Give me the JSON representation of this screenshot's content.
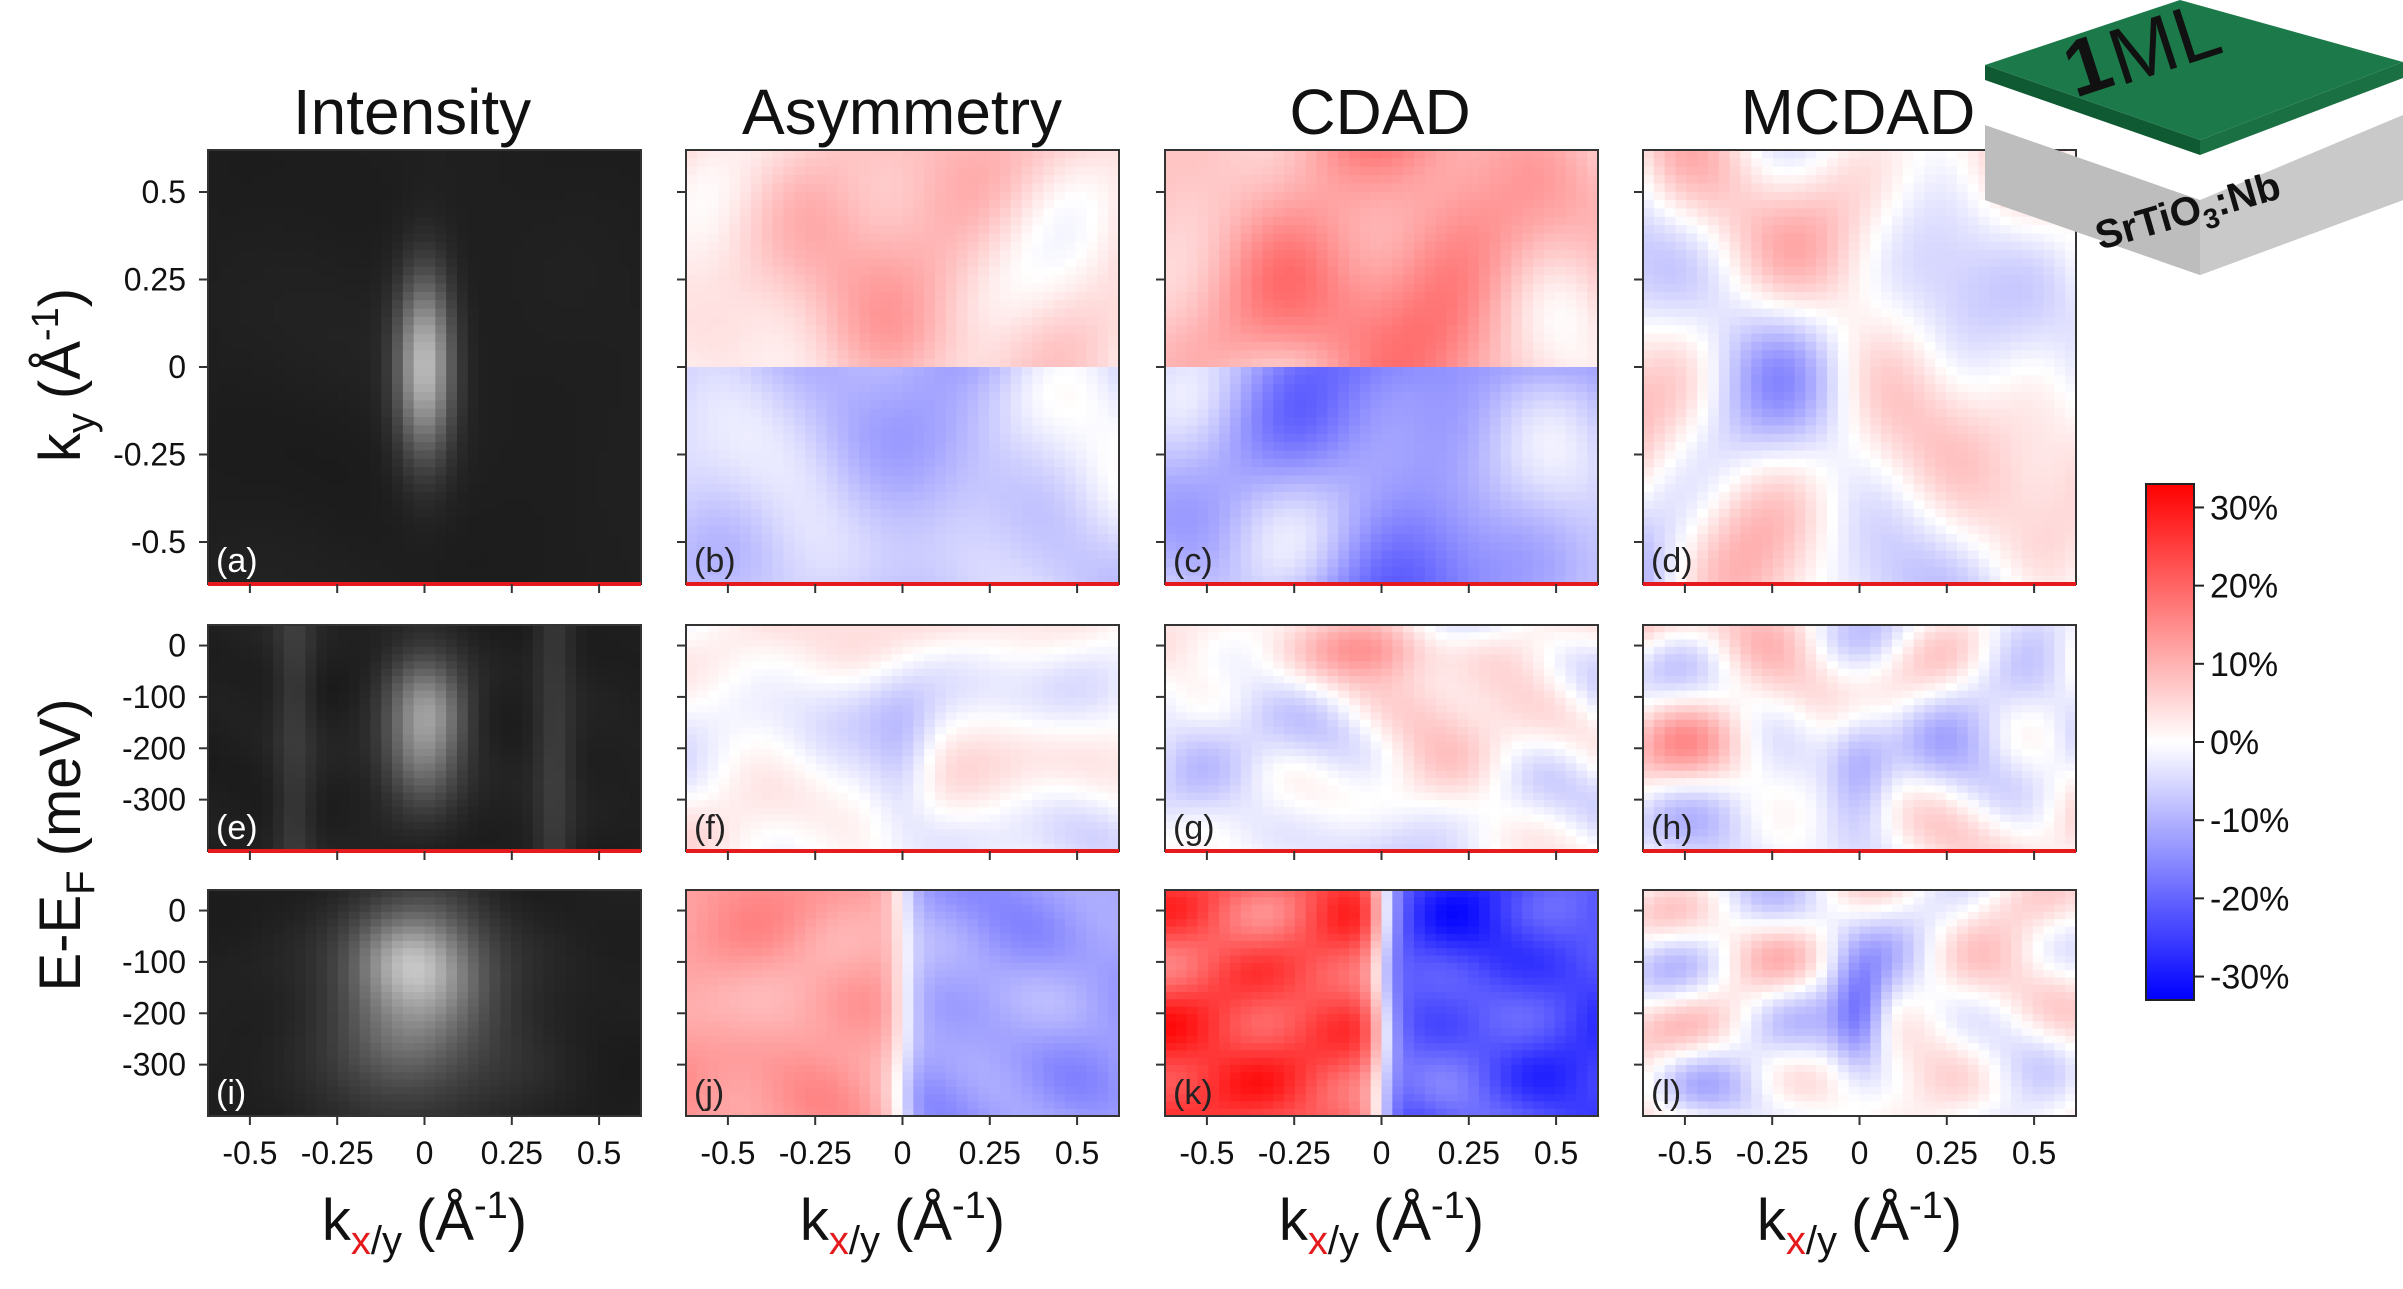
{
  "chart_data": {
    "type": "heatmap",
    "columns": [
      "Intensity",
      "Asymmetry",
      "CDAD",
      "MCDAD"
    ],
    "ylabel_top": "k_y (Å^-1)",
    "ylabel_top_parts": {
      "main": "k",
      "sub": "y",
      "paren": "(Å",
      "sup": "-1",
      "close": ")"
    },
    "ylabel_bottom": "E-E_F (meV)",
    "ylabel_bottom_parts": {
      "main": "E-E",
      "sub": "F",
      "rest": "(meV)"
    },
    "xlabel": "k_x/y (Å^-1)",
    "xlabel_parts": {
      "k": "k",
      "subx": "x",
      "suby": "/y",
      "paren": "(Å",
      "sup": "-1",
      "close": ")"
    },
    "x_ticks": [
      "-0.5",
      "-0.25",
      "0",
      "0.25",
      "0.5"
    ],
    "x_tick_values": [
      -0.5,
      -0.25,
      0,
      0.25,
      0.5
    ],
    "x_range": [
      -0.62,
      0.62
    ],
    "ky_ticks": [
      "0.5",
      "0.25",
      "0",
      "-0.25",
      "-0.5"
    ],
    "ky_tick_values": [
      0.5,
      0.25,
      0,
      -0.25,
      -0.5
    ],
    "ky_range": [
      -0.62,
      0.62
    ],
    "energy_ticks": [
      "0",
      "-100",
      "-200",
      "-300"
    ],
    "energy_tick_values": [
      0,
      -100,
      -200,
      -300
    ],
    "energy_range": [
      -400,
      40
    ],
    "colorbar": {
      "ticks": [
        "30%",
        "20%",
        "10%",
        "0%",
        "-10%",
        "-20%",
        "-30%"
      ],
      "tick_values": [
        30,
        20,
        10,
        0,
        -10,
        -20,
        -30
      ],
      "range": [
        -33,
        33
      ],
      "colors": {
        "max": "#ff0000",
        "zero": "#ffffff",
        "min": "#0000ff"
      }
    },
    "panels": [
      {
        "label": "(a)",
        "row": 0,
        "col": 0,
        "kind": "intensity",
        "pattern": "ky-map"
      },
      {
        "label": "(b)",
        "row": 0,
        "col": 1,
        "kind": "diverging",
        "pattern": "top-positive-bottom-negative",
        "amplitude": 0.45
      },
      {
        "label": "(c)",
        "row": 0,
        "col": 2,
        "kind": "diverging",
        "pattern": "top-positive-bottom-negative",
        "amplitude": 0.8
      },
      {
        "label": "(d)",
        "row": 0,
        "col": 3,
        "kind": "diverging",
        "pattern": "symmetric-noise",
        "amplitude": 0.4
      },
      {
        "label": "(e)",
        "row": 1,
        "col": 0,
        "kind": "intensity",
        "pattern": "dispersion"
      },
      {
        "label": "(f)",
        "row": 1,
        "col": 1,
        "kind": "diverging",
        "pattern": "noise-center-negative",
        "amplitude": 0.35
      },
      {
        "label": "(g)",
        "row": 1,
        "col": 2,
        "kind": "diverging",
        "pattern": "top-center-positive",
        "amplitude": 0.4
      },
      {
        "label": "(h)",
        "row": 1,
        "col": 3,
        "kind": "diverging",
        "pattern": "noise-center-negative",
        "amplitude": 0.55
      },
      {
        "label": "(i)",
        "row": 2,
        "col": 0,
        "kind": "intensity",
        "pattern": "dispersion-shifted"
      },
      {
        "label": "(j)",
        "row": 2,
        "col": 1,
        "kind": "diverging",
        "pattern": "left-positive-right-negative",
        "amplitude": 0.5
      },
      {
        "label": "(k)",
        "row": 2,
        "col": 2,
        "kind": "diverging",
        "pattern": "left-positive-right-negative",
        "amplitude": 0.95
      },
      {
        "label": "(l)",
        "row": 2,
        "col": 3,
        "kind": "diverging",
        "pattern": "symmetric-noise-center-negative",
        "amplitude": 0.45
      }
    ]
  },
  "inset": {
    "top_label_prefix": "1",
    "top_label_suffix": "ML",
    "substrate_label": "SrTiO",
    "substrate_sub": "3",
    "substrate_suffix": ":Nb",
    "colors": {
      "film_top": "#1c7a4a",
      "film_side": "#0f5a33",
      "substrate_top": "#c8c8c8",
      "substrate_side": "#b0b0b0",
      "substrate_front": "#bdbdbd",
      "highlight": "#e41a1c"
    }
  }
}
